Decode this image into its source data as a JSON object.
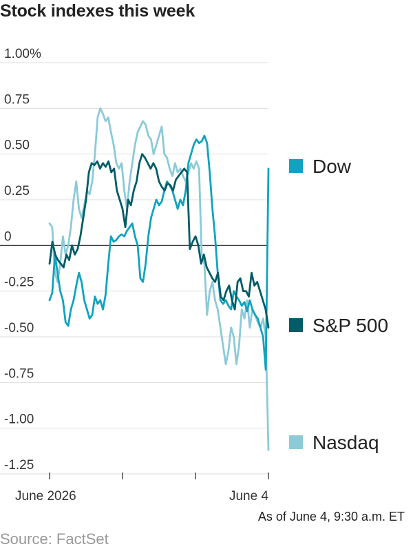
{
  "title": "Stock indexes this week",
  "note": "As of June 4, 9:30 a.m. ET",
  "source": "Source: FactSet",
  "chart_data": {
    "type": "line",
    "title": "Stock indexes this week",
    "y_unit": "%",
    "ylim": [
      -1.25,
      1.0
    ],
    "y_ticks": [
      1.0,
      0.75,
      0.5,
      0.25,
      0,
      -0.25,
      -0.5,
      -0.75,
      -1.0,
      -1.25
    ],
    "y_tick_labels": [
      "1.00%",
      "0.75",
      "0.50",
      "0.25",
      "0",
      "-0.25",
      "-0.50",
      "-0.75",
      "-1.00",
      "-1.25"
    ],
    "x_start_label": "June 2026",
    "x_end_label": "June 4",
    "grid": true,
    "legend_placement": "right",
    "series": [
      {
        "name": "Dow",
        "color": "#10a3bf",
        "values": [
          -0.3,
          -0.26,
          -0.05,
          -0.15,
          -0.25,
          -0.3,
          -0.42,
          -0.44,
          -0.35,
          -0.3,
          -0.22,
          -0.15,
          -0.2,
          -0.3,
          -0.35,
          -0.4,
          -0.38,
          -0.28,
          -0.32,
          -0.3,
          -0.35,
          -0.27,
          -0.1,
          0.05,
          0.02,
          0.03,
          0.05,
          0.06,
          0.05,
          0.08,
          0.1,
          0.12,
          0.05,
          0.0,
          -0.18,
          -0.2,
          -0.1,
          0.05,
          0.15,
          0.2,
          0.25,
          0.22,
          0.24,
          0.3,
          0.35,
          0.33,
          0.3,
          0.25,
          0.2,
          0.25,
          0.22,
          0.3,
          0.45,
          0.5,
          0.55,
          0.58,
          0.56,
          0.57,
          0.6,
          0.56,
          0.4,
          0.2,
          0.05,
          -0.15,
          -0.3,
          -0.32,
          -0.3,
          -0.33,
          -0.35,
          -0.25,
          -0.28,
          -0.3,
          -0.33,
          -0.31,
          -0.36,
          -0.3,
          -0.35,
          -0.38,
          -0.4,
          -0.45,
          -0.5,
          -0.68,
          0.42
        ]
      },
      {
        "name": "S&P 500",
        "color": "#005c66",
        "values": [
          -0.1,
          0.02,
          -0.05,
          -0.08,
          -0.1,
          -0.12,
          -0.05,
          -0.08,
          0.0,
          -0.05,
          -0.02,
          0.05,
          0.15,
          0.25,
          0.4,
          0.45,
          0.44,
          0.46,
          0.42,
          0.45,
          0.43,
          0.46,
          0.4,
          0.42,
          0.3,
          0.25,
          0.2,
          0.1,
          0.25,
          0.22,
          0.3,
          0.35,
          0.45,
          0.5,
          0.48,
          0.45,
          0.42,
          0.45,
          0.42,
          0.35,
          0.32,
          0.3,
          0.34,
          0.33,
          0.3,
          0.36,
          0.38,
          0.4,
          0.42,
          0.4,
          -0.02,
          0.02,
          0.05,
          0.0,
          -0.1,
          -0.05,
          -0.12,
          -0.15,
          -0.18,
          -0.2,
          -0.15,
          -0.28,
          -0.3,
          -0.25,
          -0.22,
          -0.3,
          -0.35,
          -0.2,
          -0.18,
          -0.25,
          -0.25,
          -0.28,
          -0.15,
          -0.22,
          -0.2,
          -0.25,
          -0.3,
          -0.35,
          -0.45
        ]
      },
      {
        "name": "Nasdaq",
        "color": "#8ccad8",
        "values": [
          0.12,
          0.1,
          -0.15,
          -0.2,
          -0.1,
          0.05,
          -0.05,
          0.0,
          0.1,
          0.25,
          0.35,
          0.2,
          0.15,
          0.22,
          0.3,
          0.28,
          0.35,
          0.5,
          0.7,
          0.75,
          0.72,
          0.68,
          0.7,
          0.62,
          0.55,
          0.45,
          0.42,
          0.45,
          0.3,
          0.2,
          0.35,
          0.45,
          0.55,
          0.62,
          0.65,
          0.68,
          0.66,
          0.6,
          0.58,
          0.5,
          0.55,
          0.6,
          0.65,
          0.5,
          0.48,
          0.42,
          0.38,
          0.45,
          0.4,
          0.42,
          0.38,
          0.35,
          0.4,
          0.45,
          0.42,
          0.46,
          0.42,
          -0.05,
          -0.1,
          -0.38,
          -0.25,
          -0.2,
          -0.3,
          -0.35,
          -0.45,
          -0.55,
          -0.65,
          -0.58,
          -0.45,
          -0.5,
          -0.65,
          -0.55,
          -0.35,
          -0.4,
          -0.3,
          -0.45,
          -0.35,
          -0.38,
          -0.42,
          -0.45,
          -0.4,
          -0.5,
          -1.12
        ]
      }
    ]
  }
}
